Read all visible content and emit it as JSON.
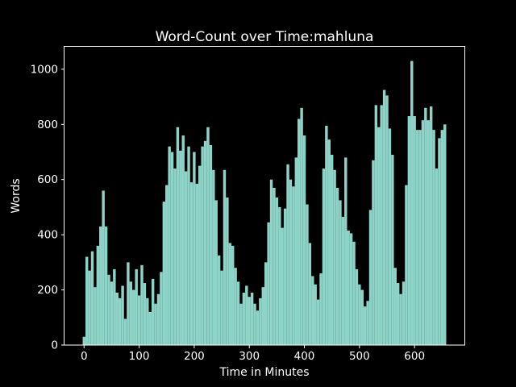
{
  "figure": {
    "background_color": "#000000",
    "text_color": "#ffffff",
    "title": "Word-Count over Time:mahluna"
  },
  "chart_data": {
    "type": "bar",
    "title": "Word-Count over Time:mahluna",
    "xlabel": "Time in Minutes",
    "ylabel": "Words",
    "bar_color": "#8dd3c7",
    "bar_width_minutes": 5,
    "xlim": [
      -35.5,
      690.5
    ],
    "ylim": [
      0,
      1081.5
    ],
    "grid": "off",
    "x_ticks": [
      "0",
      "100",
      "200",
      "300",
      "400",
      "500",
      "600"
    ],
    "x_tick_values": [
      0,
      100,
      200,
      300,
      400,
      500,
      600
    ],
    "y_ticks": [
      "0",
      "200",
      "400",
      "600",
      "800",
      "1000"
    ],
    "y_tick_values": [
      0,
      200,
      400,
      600,
      800,
      1000
    ],
    "x": [
      0,
      5,
      10,
      15,
      20,
      25,
      30,
      35,
      40,
      45,
      50,
      55,
      60,
      65,
      70,
      75,
      80,
      85,
      90,
      95,
      100,
      105,
      110,
      115,
      120,
      125,
      130,
      135,
      140,
      145,
      150,
      155,
      160,
      165,
      170,
      175,
      180,
      185,
      190,
      195,
      200,
      205,
      210,
      215,
      220,
      225,
      230,
      235,
      240,
      245,
      250,
      255,
      260,
      265,
      270,
      275,
      280,
      285,
      290,
      295,
      300,
      305,
      310,
      315,
      320,
      325,
      330,
      335,
      340,
      345,
      350,
      355,
      360,
      365,
      370,
      375,
      380,
      385,
      390,
      395,
      400,
      405,
      410,
      415,
      420,
      425,
      430,
      435,
      440,
      445,
      450,
      455,
      460,
      465,
      470,
      475,
      480,
      485,
      490,
      495,
      500,
      505,
      510,
      515,
      520,
      525,
      530,
      535,
      540,
      545,
      550,
      555,
      560,
      565,
      570,
      575,
      580,
      585,
      590,
      595,
      600,
      605,
      610,
      615,
      620,
      625,
      630,
      635,
      640,
      645,
      650,
      655
    ],
    "values": [
      30,
      320,
      270,
      340,
      210,
      360,
      430,
      560,
      430,
      255,
      230,
      275,
      190,
      170,
      215,
      95,
      300,
      230,
      200,
      275,
      180,
      290,
      225,
      170,
      120,
      240,
      150,
      185,
      265,
      520,
      580,
      720,
      700,
      640,
      790,
      705,
      760,
      630,
      720,
      590,
      700,
      585,
      650,
      720,
      740,
      790,
      725,
      635,
      525,
      325,
      270,
      635,
      535,
      370,
      360,
      280,
      230,
      150,
      190,
      215,
      175,
      190,
      150,
      125,
      170,
      210,
      300,
      445,
      600,
      570,
      535,
      500,
      425,
      495,
      655,
      600,
      575,
      680,
      820,
      860,
      760,
      510,
      370,
      250,
      220,
      165,
      260,
      640,
      795,
      745,
      690,
      635,
      570,
      525,
      465,
      680,
      415,
      405,
      375,
      275,
      220,
      200,
      140,
      160,
      490,
      670,
      870,
      790,
      870,
      925,
      905,
      785,
      690,
      280,
      225,
      185,
      230,
      580,
      830,
      1030,
      830,
      780,
      780,
      815,
      860,
      815,
      865,
      780,
      640,
      750,
      780,
      800
    ]
  }
}
